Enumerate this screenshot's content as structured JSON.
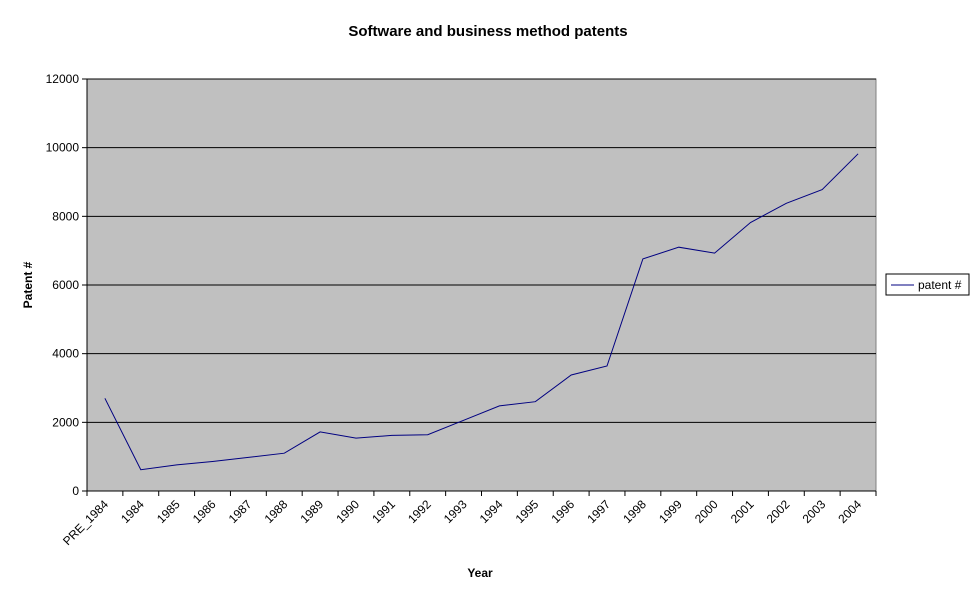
{
  "chart_data": {
    "type": "line",
    "title": "Software and business method patents",
    "xlabel": "Year",
    "ylabel": "Patent #",
    "categories": [
      "PRE_1984",
      "1984",
      "1985",
      "1986",
      "1987",
      "1988",
      "1989",
      "1990",
      "1991",
      "1992",
      "1993",
      "1994",
      "1995",
      "1996",
      "1997",
      "1998",
      "1999",
      "2000",
      "2001",
      "2002",
      "2003",
      "2004"
    ],
    "series": [
      {
        "name": "patent #",
        "color": "#000080",
        "values": [
          2700,
          620,
          760,
          860,
          980,
          1100,
          1720,
          1540,
          1620,
          1640,
          2060,
          2480,
          2600,
          3380,
          3640,
          6760,
          7100,
          6930,
          7820,
          8380,
          8780,
          9820
        ]
      }
    ],
    "ylim": [
      0,
      12000
    ],
    "yticks": [
      0,
      2000,
      4000,
      6000,
      8000,
      10000,
      12000
    ],
    "grid": true,
    "plot_background": "#c0c0c0",
    "legend": "right"
  }
}
